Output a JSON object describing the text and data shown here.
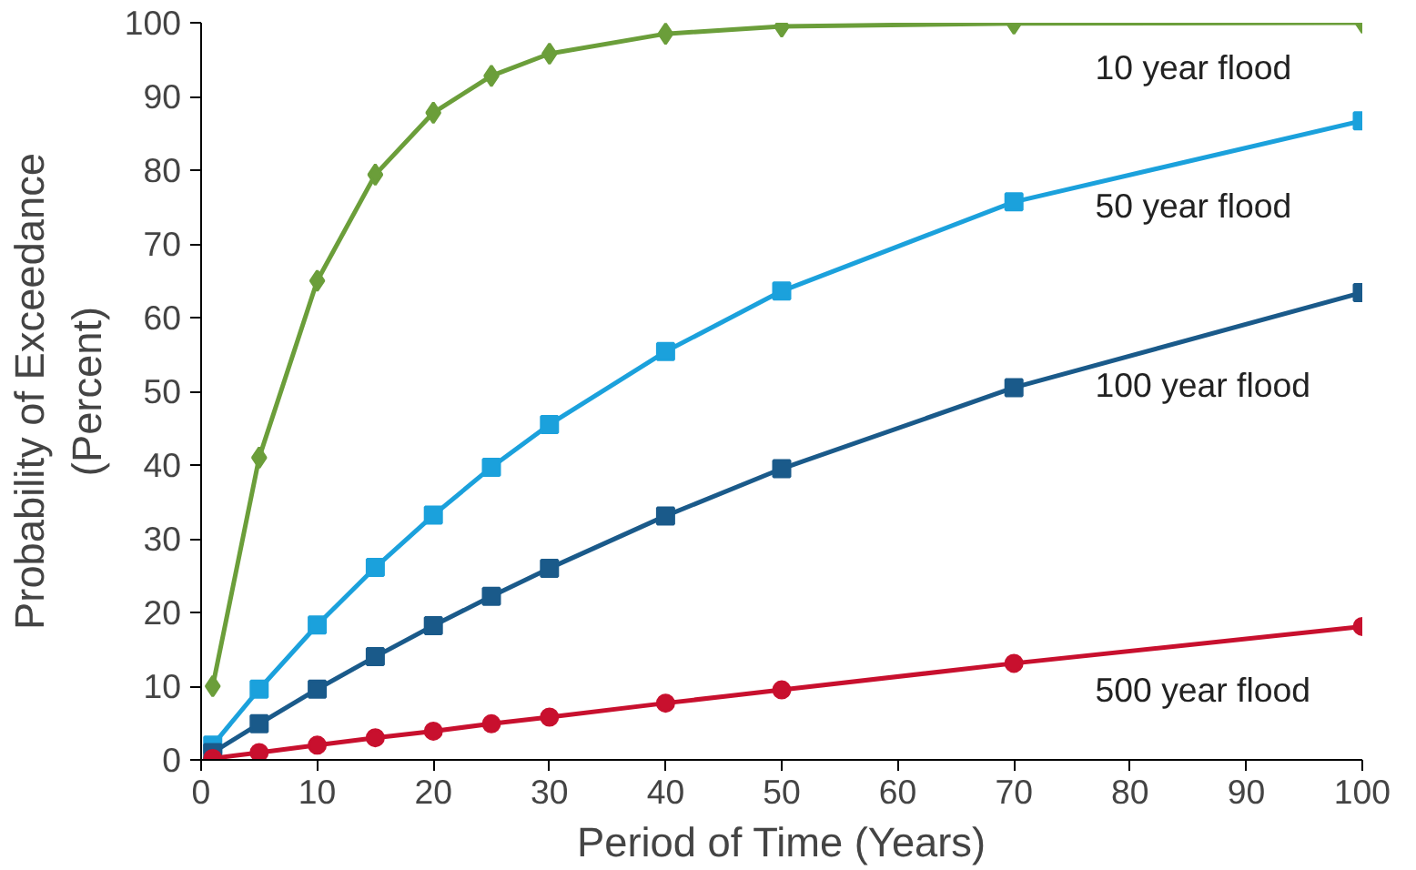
{
  "chart_data": {
    "type": "line",
    "xlabel": "Period of Time (Years)",
    "ylabel": "Probability of Exceedance\n(Percent)",
    "x": [
      1,
      5,
      10,
      15,
      20,
      25,
      30,
      40,
      50,
      70,
      100
    ],
    "xlim": [
      0,
      100
    ],
    "xticks": [
      0,
      10,
      20,
      30,
      40,
      50,
      60,
      70,
      80,
      90,
      100
    ],
    "ylim": [
      0,
      100
    ],
    "yticks": [
      0,
      10,
      20,
      30,
      40,
      50,
      60,
      70,
      80,
      90,
      100
    ],
    "grid": false,
    "legend": false,
    "line_style": "solid",
    "series": [
      {
        "name": "10 year flood",
        "color": "#6b9e3a",
        "marker": "diamond",
        "values": [
          10,
          41,
          65,
          79.4,
          87.8,
          92.8,
          95.8,
          98.5,
          99.5,
          99.9,
          100
        ]
      },
      {
        "name": "50 year flood",
        "color": "#1ba1dc",
        "marker": "square",
        "values": [
          2,
          9.6,
          18.3,
          26.1,
          33.2,
          39.7,
          45.5,
          55.4,
          63.6,
          75.7,
          86.7
        ]
      },
      {
        "name": "100 year flood",
        "color": "#1a5a8a",
        "marker": "square",
        "values": [
          1,
          4.9,
          9.6,
          14,
          18.2,
          22.2,
          26,
          33.1,
          39.5,
          50.5,
          63.4
        ]
      },
      {
        "name": "500 year flood",
        "color": "#c8102e",
        "marker": "circle",
        "values": [
          0.2,
          1,
          2,
          3,
          3.9,
          4.9,
          5.8,
          7.7,
          9.5,
          13.1,
          18.1
        ]
      }
    ]
  }
}
